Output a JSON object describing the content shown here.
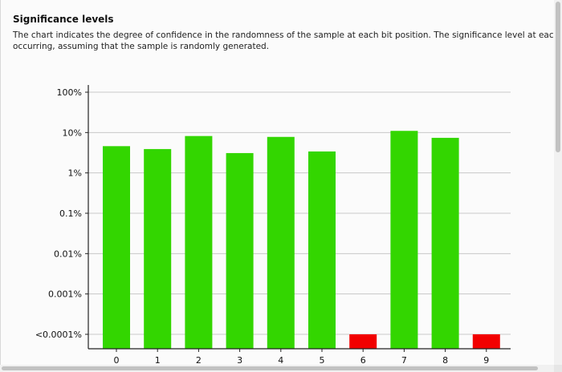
{
  "section": {
    "title": "Significance levels",
    "description_lines": [
      "The chart indicates the degree of confidence in the randomness of the sample at each bit position. The significance level at each position is the probab",
      "occurring, assuming that the sample is randomly generated."
    ]
  },
  "colors": {
    "pass": "#33d600",
    "fail": "#f20000"
  },
  "chart_data": {
    "type": "bar",
    "y_scale": "log",
    "y_ticks": [
      {
        "label": "100%",
        "value": 100
      },
      {
        "label": "10%",
        "value": 10
      },
      {
        "label": "1%",
        "value": 1
      },
      {
        "label": "0.1%",
        "value": 0.1
      },
      {
        "label": "0.01%",
        "value": 0.01
      },
      {
        "label": "0.001%",
        "value": 0.001
      },
      {
        "label": "<0.0001%",
        "value": 0.0001
      }
    ],
    "grid": true,
    "categories": [
      "0",
      "1",
      "2",
      "3",
      "4",
      "5",
      "6",
      "7",
      "8",
      "9"
    ],
    "values": [
      4.6,
      3.9,
      8.2,
      3.1,
      7.8,
      3.4,
      0.0001,
      11.0,
      7.4,
      0.0001
    ],
    "status": [
      "pass",
      "pass",
      "pass",
      "pass",
      "pass",
      "pass",
      "fail",
      "pass",
      "pass",
      "fail"
    ]
  }
}
